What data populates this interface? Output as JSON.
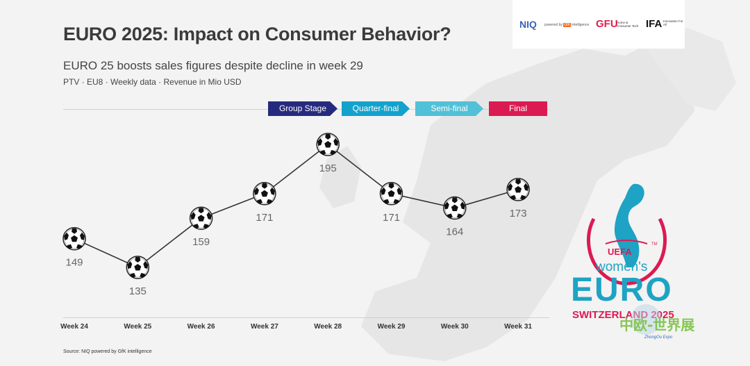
{
  "header": {
    "title": "EURO 2025: Impact on Consumer Behavior?",
    "subtitle": "EURO 25 boosts sales figures despite decline in week 29",
    "meta": "PTV · EU8 · Weekly data · Revenue in Mio USD"
  },
  "logos": {
    "niq": "NIQ",
    "powered_by": "powered by",
    "gfk": "GfK",
    "intelligence": "intelligence",
    "gfu": "GFU",
    "gfu_sub": "Home & Consumer Tech",
    "ifa": "IFA",
    "ifa_sub": "Innovation For All"
  },
  "stages": [
    {
      "label": "Group Stage",
      "color": "#262a7e"
    },
    {
      "label": "Quarter-final",
      "color": "#13a2cc"
    },
    {
      "label": "Semi-final",
      "color": "#52c0d6"
    },
    {
      "label": "Final",
      "color": "#dc1a52"
    }
  ],
  "source": "Source: NIQ powered by GfK intelligence",
  "event_logo": {
    "uefa": "UEFA",
    "womens": "women's",
    "euro": "EURO",
    "host": "SWITZERLAND 2025",
    "tm": "TM",
    "watermark_cn": "中欧-世界展会",
    "watermark_en": "ZhongOu Expo",
    "red": "#dc1a52",
    "teal": "#1ea3c4"
  },
  "chart_data": {
    "type": "line",
    "title": "EURO 25 boosts sales figures despite decline in week 29",
    "xlabel": "",
    "ylabel": "Revenue in Mio USD",
    "categories": [
      "Week 24",
      "Week 25",
      "Week 26",
      "Week 27",
      "Week 28",
      "Week 29",
      "Week 30",
      "Week 31"
    ],
    "series": [
      {
        "name": "PTV Revenue (Mio USD)",
        "values": [
          149,
          135,
          159,
          171,
          195,
          171,
          164,
          173
        ]
      }
    ],
    "marker": "soccer-ball",
    "grid": false,
    "data_labels": true
  }
}
